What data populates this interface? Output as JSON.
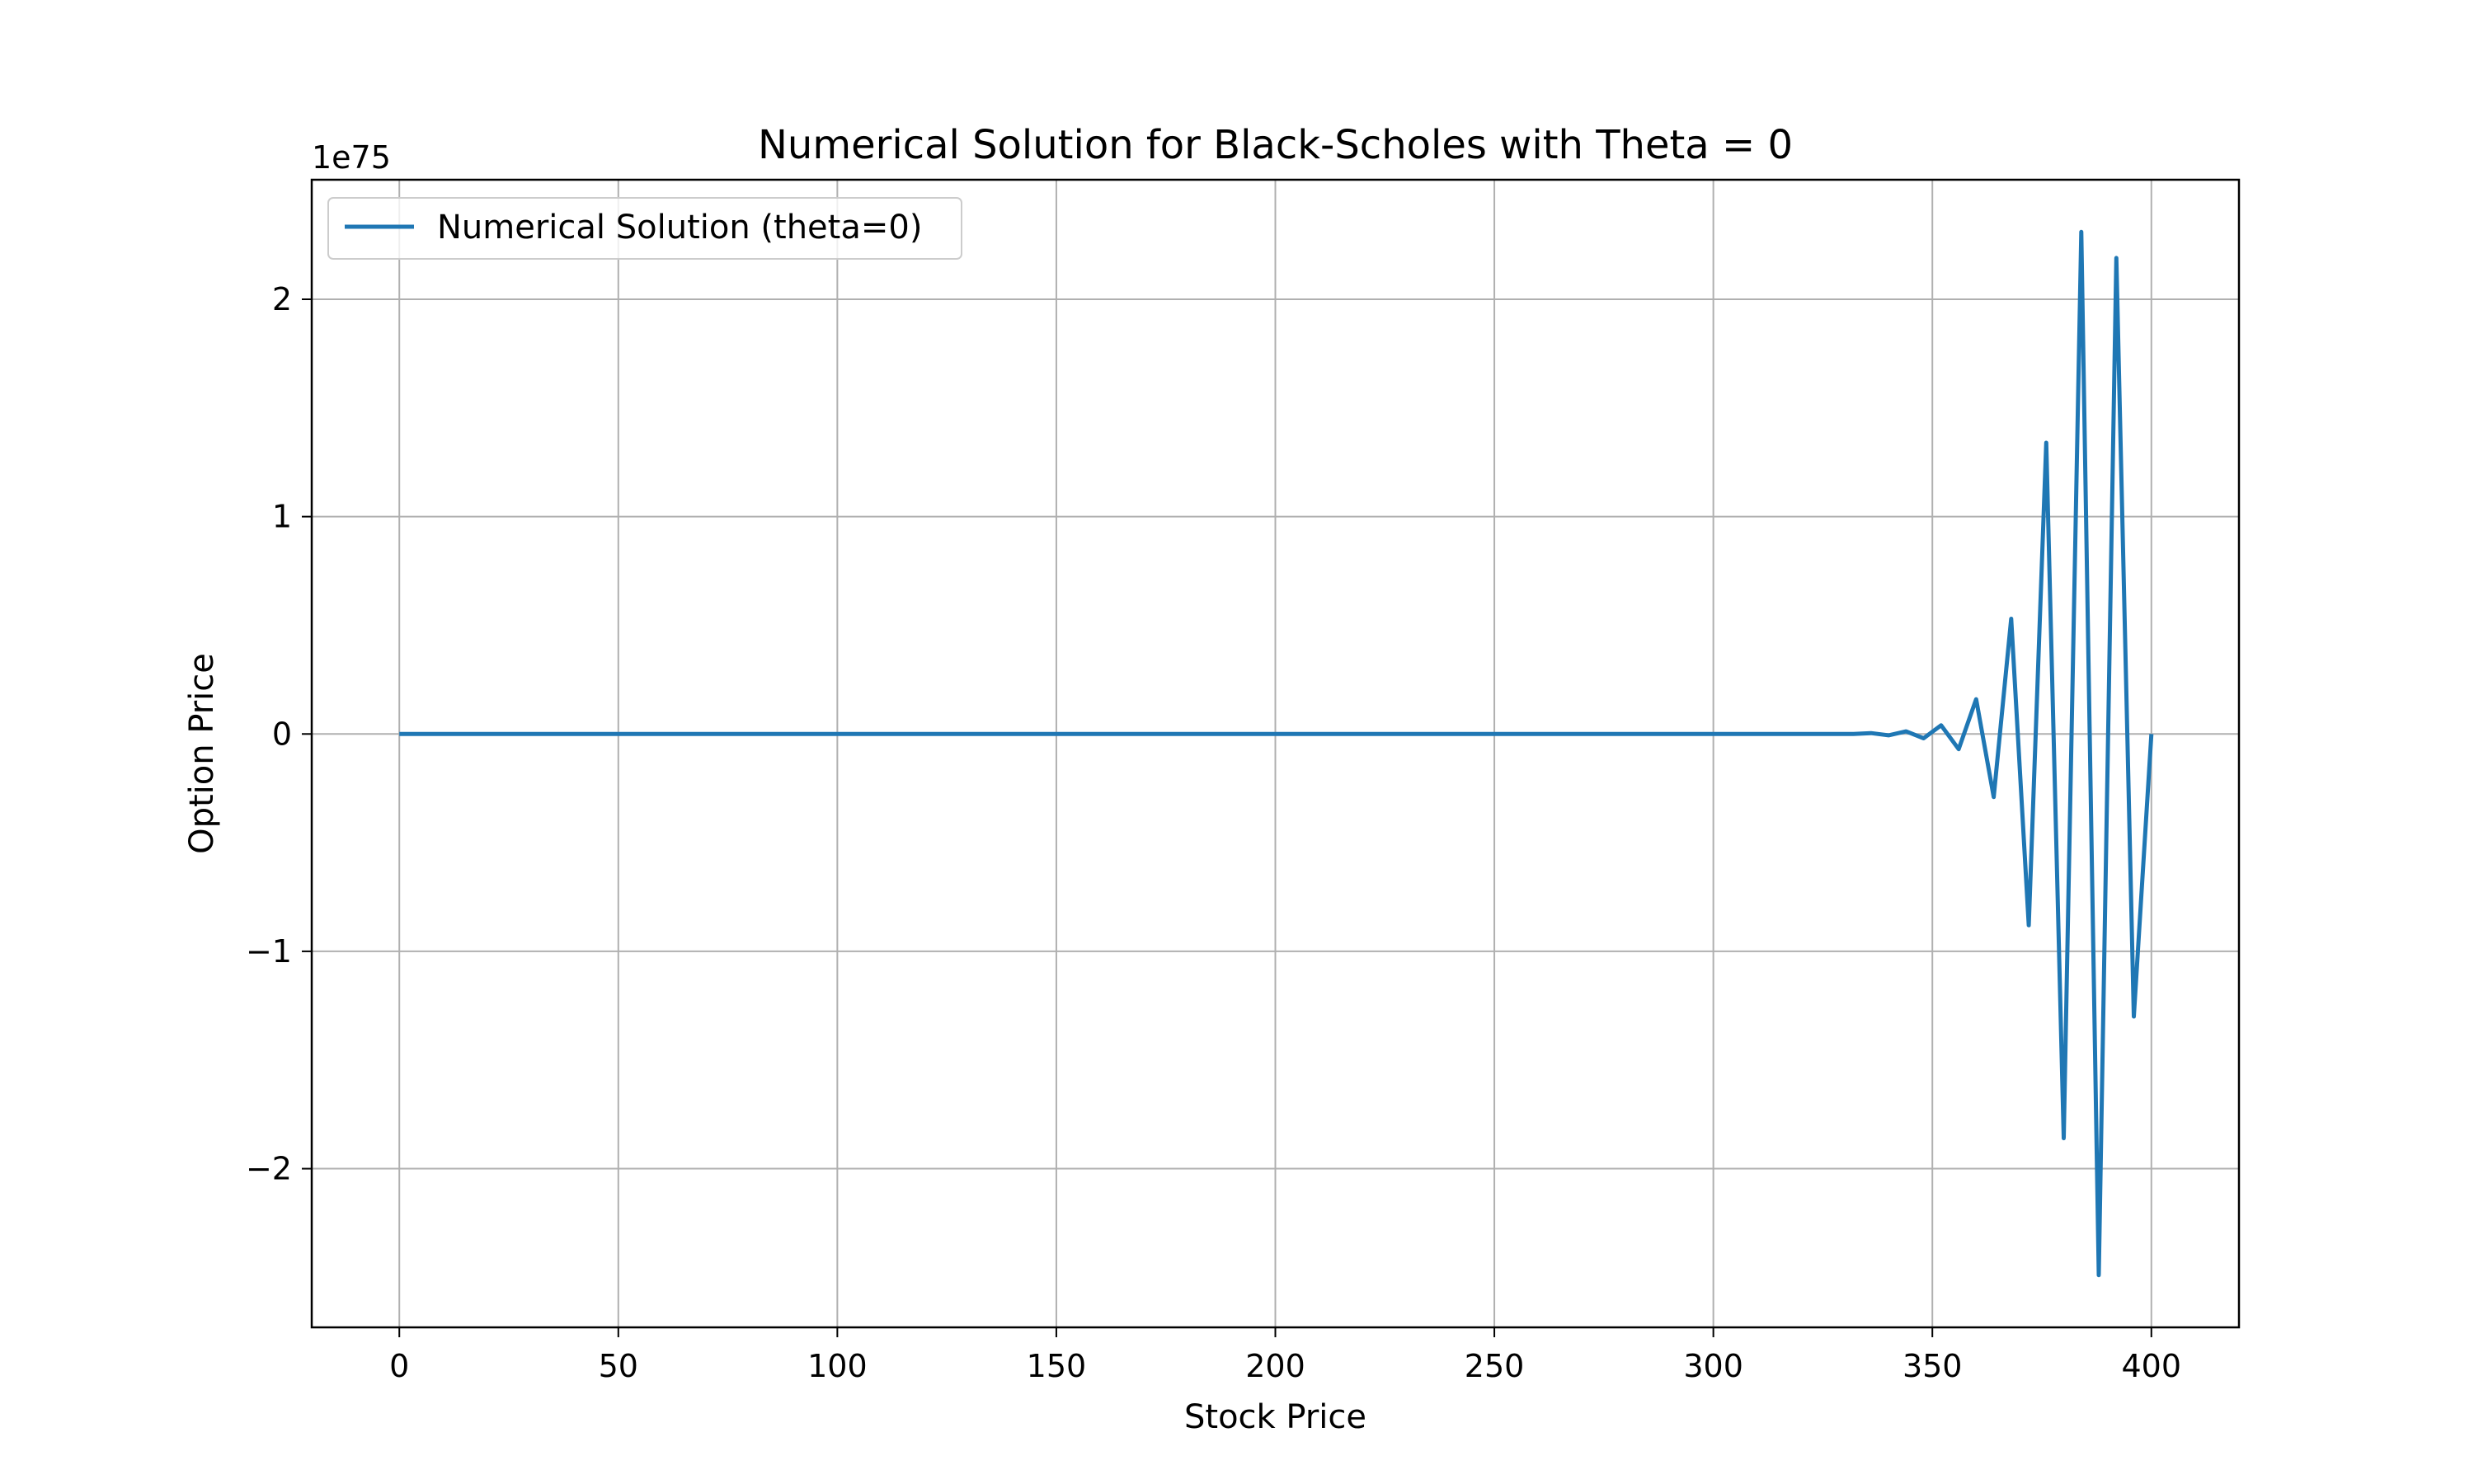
{
  "chart_data": {
    "type": "line",
    "title": "Numerical Solution for Black-Scholes with Theta = 0",
    "xlabel": "Stock Price",
    "ylabel": "Option Price",
    "y_offset_label": "1e75",
    "xlim": [
      -20,
      420
    ],
    "ylim": [
      -2.73,
      2.55
    ],
    "xticks": [
      0,
      50,
      100,
      150,
      200,
      250,
      300,
      350,
      400
    ],
    "xtick_labels": [
      "0",
      "50",
      "100",
      "150",
      "200",
      "250",
      "300",
      "350",
      "400"
    ],
    "yticks": [
      -2,
      -1,
      0,
      1,
      2
    ],
    "ytick_labels": [
      "−2",
      "−1",
      "0",
      "1",
      "2"
    ],
    "grid": true,
    "legend_position": "upper-left",
    "colors": {
      "series": "#1f77b4",
      "grid": "#b0b0b0",
      "axes": "#000000"
    },
    "series": [
      {
        "name": "Numerical Solution (theta=0)",
        "x": [
          0,
          20,
          40,
          60,
          80,
          100,
          120,
          140,
          160,
          180,
          200,
          220,
          240,
          260,
          280,
          300,
          320,
          332,
          336,
          340,
          344,
          348,
          352,
          356,
          360,
          364,
          368,
          372,
          376,
          380,
          384,
          388,
          392,
          396,
          400
        ],
        "values": [
          0,
          0,
          0,
          0,
          0,
          0,
          0,
          0,
          0,
          0,
          0,
          0,
          0,
          0,
          0,
          0,
          0,
          0,
          0.004,
          -0.006,
          0.012,
          -0.02,
          0.04,
          -0.07,
          0.16,
          -0.29,
          0.53,
          -0.88,
          1.34,
          -1.86,
          2.31,
          -2.49,
          2.19,
          -1.3,
          0.0
        ]
      }
    ]
  }
}
